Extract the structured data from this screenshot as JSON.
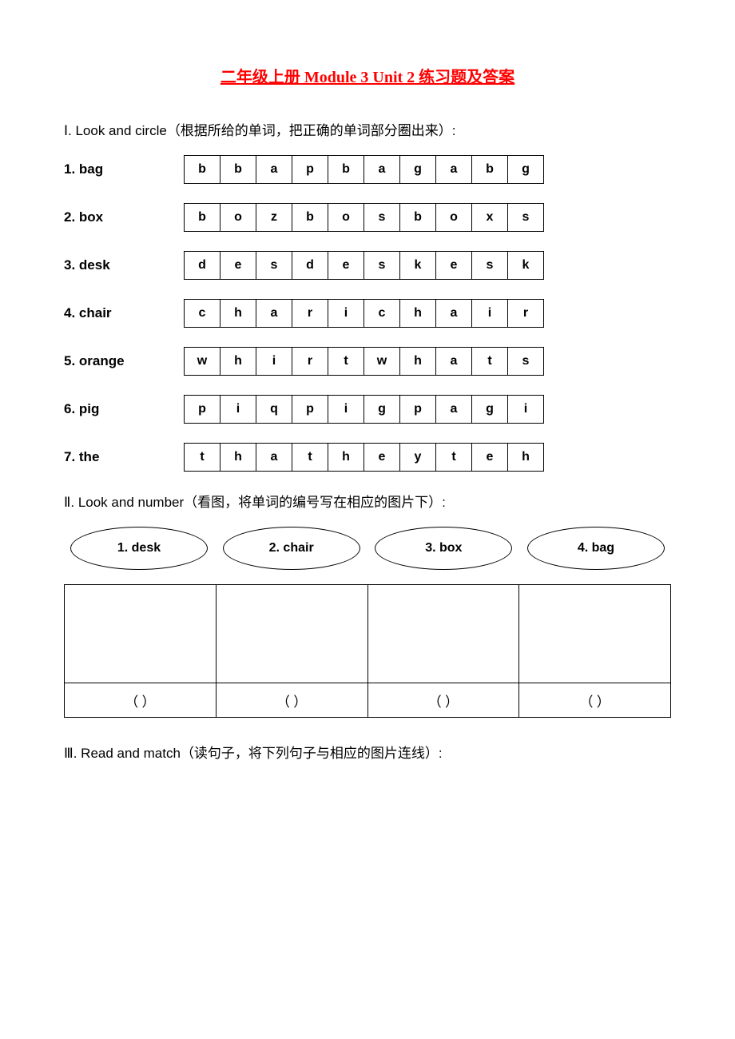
{
  "title": {
    "text": "二年级上册 Module 3 Unit 2 练习题及答案",
    "color": "#ff0000",
    "fontsize": 20
  },
  "section1": {
    "roman": "Ⅰ",
    "en": ". Look and circle",
    "cn": "（根据所给的单词，把正确的单词部分圈出来）:",
    "fontsize": 17,
    "label_fontsize": 17,
    "cell_fontsize": 16,
    "rows": [
      {
        "label": "1. bag",
        "letters": [
          "b",
          "b",
          "a",
          "p",
          "b",
          "a",
          "g",
          "a",
          "b",
          "g"
        ]
      },
      {
        "label": "2. box",
        "letters": [
          "b",
          "o",
          "z",
          "b",
          "o",
          "s",
          "b",
          "o",
          "x",
          "s"
        ]
      },
      {
        "label": "3. desk",
        "letters": [
          "d",
          "e",
          "s",
          "d",
          "e",
          "s",
          "k",
          "e",
          "s",
          "k"
        ]
      },
      {
        "label": "4. chair",
        "letters": [
          "c",
          "h",
          "a",
          "r",
          "i",
          "c",
          "h",
          "a",
          "i",
          "r"
        ]
      },
      {
        "label": "5. orange",
        "letters": [
          "w",
          "h",
          "i",
          "r",
          "t",
          "w",
          "h",
          "a",
          "t",
          "s"
        ]
      },
      {
        "label": "6. pig",
        "letters": [
          "p",
          "i",
          "q",
          "p",
          "i",
          "g",
          "p",
          "a",
          "g",
          "i"
        ]
      },
      {
        "label": "7. the",
        "letters": [
          "t",
          "h",
          "a",
          "t",
          "h",
          "e",
          "y",
          "t",
          "e",
          "h"
        ]
      }
    ]
  },
  "section2": {
    "roman": "Ⅱ",
    "en": ". Look and number",
    "cn": "（看图，将单词的编号写在相应的图片下）:",
    "fontsize": 17,
    "oval_fontsize": 16,
    "ovals": [
      "1. desk",
      "2. chair",
      "3. box",
      "4. bag"
    ],
    "answer_placeholder": "（        ）",
    "cols": 4
  },
  "section3": {
    "roman": "Ⅲ",
    "en": ". Read and match",
    "cn": "（读句子，将下列句子与相应的图片连线）:",
    "fontsize": 17
  },
  "style": {
    "border_color": "#000000",
    "background": "#ffffff"
  }
}
